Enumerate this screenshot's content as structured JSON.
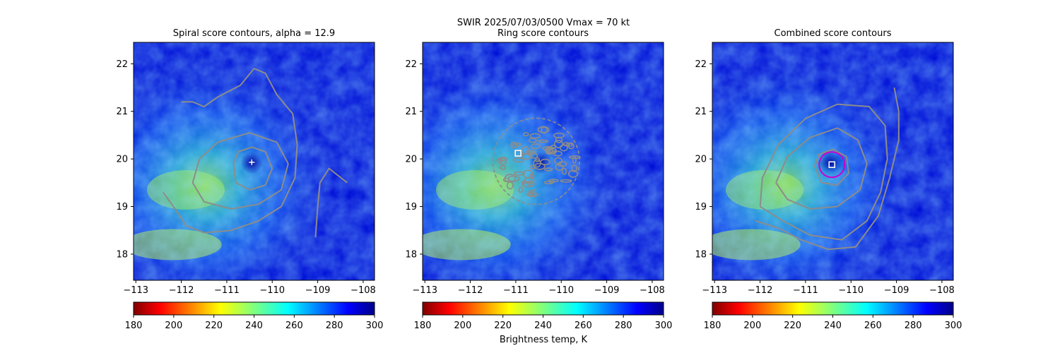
{
  "figure": {
    "suptitle": "SWIR  2025/07/03/0500    Vmax = 70 kt",
    "colorbar_label": "Brightness temp, K"
  },
  "chart_data": [
    {
      "type": "heatmap",
      "title": "Spiral score contours, alpha = 12.9",
      "xlim": [
        -113.05,
        -107.75
      ],
      "ylim": [
        17.45,
        22.45
      ],
      "xticks": [
        -113,
        -112,
        -111,
        -110,
        -109,
        -108
      ],
      "yticks": [
        18,
        19,
        20,
        21,
        22
      ],
      "colorbar": {
        "min": 180,
        "max": 300,
        "ticks": [
          180,
          200,
          220,
          240,
          260,
          280,
          300
        ],
        "colormap": "jet_r"
      },
      "center_marker": {
        "shape": "plus",
        "lon": -110.45,
        "lat": 19.93,
        "color": "#ffffff"
      },
      "contours": [
        {
          "color": "#8c8c8c",
          "points": [
            [
              -110.85,
              19.9
            ],
            [
              -110.75,
              20.15
            ],
            [
              -110.45,
              20.25
            ],
            [
              -110.15,
              20.15
            ],
            [
              -110.0,
              19.8
            ],
            [
              -110.15,
              19.45
            ],
            [
              -110.5,
              19.35
            ],
            [
              -110.8,
              19.5
            ],
            [
              -110.85,
              19.9
            ]
          ]
        },
        {
          "color": "#8c8c8c",
          "points": [
            [
              -111.75,
              19.5
            ],
            [
              -111.6,
              20.0
            ],
            [
              -111.2,
              20.35
            ],
            [
              -110.5,
              20.55
            ],
            [
              -109.9,
              20.35
            ],
            [
              -109.65,
              19.9
            ],
            [
              -109.8,
              19.35
            ],
            [
              -110.3,
              19.05
            ],
            [
              -110.9,
              18.95
            ],
            [
              -111.5,
              19.1
            ],
            [
              -111.75,
              19.5
            ]
          ]
        },
        {
          "color": "#8c8c8c",
          "points": [
            [
              -112.0,
              21.2
            ],
            [
              -111.75,
              21.2
            ],
            [
              -111.5,
              21.1
            ],
            [
              -111.2,
              21.3
            ],
            [
              -110.7,
              21.55
            ],
            [
              -110.4,
              21.9
            ],
            [
              -110.15,
              21.8
            ],
            [
              -109.9,
              21.35
            ],
            [
              -109.55,
              20.95
            ],
            [
              -109.45,
              20.3
            ],
            [
              -109.5,
              19.6
            ],
            [
              -109.8,
              19.0
            ],
            [
              -110.3,
              18.7
            ],
            [
              -110.9,
              18.5
            ],
            [
              -111.5,
              18.45
            ],
            [
              -111.9,
              18.6
            ],
            [
              -112.1,
              18.9
            ],
            [
              -112.4,
              19.3
            ]
          ]
        },
        {
          "color": "#8c8c8c",
          "points": [
            [
              -109.05,
              18.35
            ],
            [
              -109.0,
              19.0
            ],
            [
              -108.95,
              19.5
            ],
            [
              -108.75,
              19.8
            ],
            [
              -108.55,
              19.65
            ],
            [
              -108.35,
              19.5
            ]
          ]
        }
      ]
    },
    {
      "type": "heatmap",
      "title": "Ring score contours",
      "xlim": [
        -113.05,
        -107.75
      ],
      "ylim": [
        17.45,
        22.45
      ],
      "xticks": [
        -113,
        -112,
        -111,
        -110,
        -109,
        -108
      ],
      "yticks": [
        18,
        19,
        20,
        21,
        22
      ],
      "colorbar": {
        "min": 180,
        "max": 300,
        "ticks": [
          180,
          200,
          220,
          240,
          260,
          280,
          300
        ],
        "colormap": "jet_r"
      },
      "center_marker": {
        "shape": "square",
        "lon": -110.95,
        "lat": 20.12,
        "color": "#ffffff"
      },
      "ring_region": {
        "lon": -110.55,
        "lat": 19.95,
        "radius_deg": 0.95,
        "color": "#8c8c8c"
      }
    },
    {
      "type": "heatmap",
      "title": "Combined score contours",
      "xlim": [
        -113.05,
        -107.75
      ],
      "ylim": [
        17.45,
        22.45
      ],
      "xticks": [
        -113,
        -112,
        -111,
        -110,
        -109,
        -108
      ],
      "yticks": [
        18,
        19,
        20,
        21,
        22
      ],
      "colorbar": {
        "min": 180,
        "max": 300,
        "ticks": [
          180,
          200,
          220,
          240,
          260,
          280,
          300
        ],
        "colormap": "jet_r"
      },
      "center_marker": {
        "shape": "square",
        "lon": -110.42,
        "lat": 19.88,
        "color": "#ffffff"
      },
      "eye_circle": {
        "lon": -110.42,
        "lat": 19.88,
        "radius_deg": 0.28,
        "color": "#cc00cc"
      },
      "contours": [
        {
          "color": "#8c8c8c",
          "points": [
            [
              -110.8,
              19.85
            ],
            [
              -110.7,
              20.1
            ],
            [
              -110.4,
              20.2
            ],
            [
              -110.1,
              20.05
            ],
            [
              -110.05,
              19.7
            ],
            [
              -110.3,
              19.45
            ],
            [
              -110.65,
              19.5
            ],
            [
              -110.8,
              19.85
            ]
          ]
        },
        {
          "color": "#8c8c8c",
          "points": [
            [
              -111.65,
              19.5
            ],
            [
              -111.4,
              20.05
            ],
            [
              -110.9,
              20.45
            ],
            [
              -110.3,
              20.65
            ],
            [
              -109.85,
              20.4
            ],
            [
              -109.65,
              19.9
            ],
            [
              -109.8,
              19.35
            ],
            [
              -110.3,
              19.0
            ],
            [
              -110.9,
              18.95
            ],
            [
              -111.4,
              19.15
            ],
            [
              -111.65,
              19.5
            ]
          ]
        },
        {
          "color": "#8c8c8c",
          "points": [
            [
              -112.0,
              19.0
            ],
            [
              -111.95,
              19.6
            ],
            [
              -111.6,
              20.3
            ],
            [
              -111.0,
              20.85
            ],
            [
              -110.3,
              21.15
            ],
            [
              -109.6,
              21.1
            ],
            [
              -109.25,
              20.7
            ],
            [
              -109.2,
              20.0
            ],
            [
              -109.35,
              19.3
            ],
            [
              -109.65,
              18.7
            ],
            [
              -110.2,
              18.3
            ],
            [
              -110.9,
              18.4
            ],
            [
              -111.5,
              18.7
            ],
            [
              -112.0,
              19.0
            ]
          ]
        },
        {
          "color": "#8c8c8c",
          "points": [
            [
              -109.05,
              21.5
            ],
            [
              -108.95,
              21.0
            ],
            [
              -108.95,
              20.4
            ],
            [
              -109.15,
              19.6
            ],
            [
              -109.4,
              18.8
            ],
            [
              -109.9,
              18.15
            ],
            [
              -110.5,
              18.1
            ],
            [
              -111.1,
              18.3
            ],
            [
              -111.6,
              18.55
            ],
            [
              -112.1,
              18.7
            ]
          ]
        }
      ]
    }
  ]
}
